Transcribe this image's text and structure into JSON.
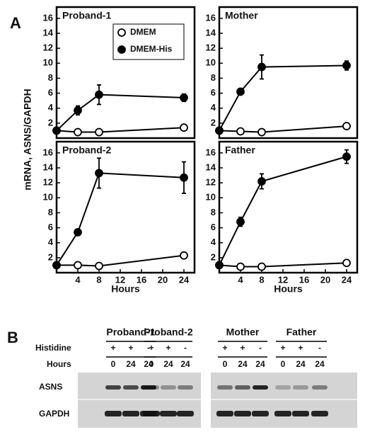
{
  "figure": {
    "panel_a_label": "A",
    "y_label": "mRNA, ASNS/GAPDH",
    "panel_b_label": "B"
  },
  "chart_data": [
    {
      "type": "line",
      "title": "Proband-1",
      "x": [
        0,
        4,
        8,
        24
      ],
      "xlim": [
        0,
        26
      ],
      "ylim": [
        0,
        17.5
      ],
      "yticks": [
        2,
        4,
        6,
        8,
        10,
        12,
        14,
        16
      ],
      "legend": "top-center",
      "series": [
        {
          "name": "DMEM",
          "color": "#000000",
          "marker_fill": "#ffffff",
          "values": [
            1.0,
            0.8,
            0.8,
            1.4
          ],
          "errors": [
            null,
            null,
            null,
            null
          ]
        },
        {
          "name": "DMEM-His",
          "color": "#000000",
          "marker_fill": "#000000",
          "values": [
            1.0,
            3.7,
            5.8,
            5.4
          ],
          "errors": [
            null,
            0.6,
            1.3,
            0.5
          ]
        }
      ]
    },
    {
      "type": "line",
      "title": "Mother",
      "x": [
        0,
        4,
        8,
        24
      ],
      "xlim": [
        0,
        26
      ],
      "ylim": [
        0,
        17.5
      ],
      "yticks": [
        2,
        4,
        6,
        8,
        10,
        12,
        14,
        16
      ],
      "series": [
        {
          "color": "#000000",
          "marker_fill": "#ffffff",
          "values": [
            1.0,
            0.9,
            0.8,
            1.6
          ],
          "errors": [
            null,
            null,
            null,
            null
          ]
        },
        {
          "color": "#000000",
          "marker_fill": "#000000",
          "values": [
            1.0,
            6.2,
            9.5,
            9.7
          ],
          "errors": [
            null,
            0.3,
            1.6,
            0.6
          ]
        }
      ]
    },
    {
      "type": "line",
      "title": "Proband-2",
      "x": [
        0,
        4,
        8,
        24
      ],
      "xlim": [
        0,
        26
      ],
      "ylim": [
        0,
        17.5
      ],
      "xticks": [
        4,
        8,
        12,
        16,
        20,
        24
      ],
      "x_label": "Hours",
      "yticks": [
        2,
        4,
        6,
        8,
        10,
        12,
        14,
        16
      ],
      "series": [
        {
          "color": "#000000",
          "marker_fill": "#ffffff",
          "values": [
            1.0,
            1.0,
            0.9,
            2.3
          ],
          "errors": [
            null,
            null,
            null,
            null
          ]
        },
        {
          "color": "#000000",
          "marker_fill": "#000000",
          "values": [
            1.0,
            5.4,
            13.3,
            12.7
          ],
          "errors": [
            null,
            null,
            2.0,
            2.1
          ]
        }
      ]
    },
    {
      "type": "line",
      "title": "Father",
      "x": [
        0,
        4,
        8,
        24
      ],
      "xlim": [
        0,
        26
      ],
      "ylim": [
        0,
        17.5
      ],
      "xticks": [
        4,
        8,
        12,
        16,
        20,
        24
      ],
      "x_label": "Hours",
      "yticks": [
        2,
        4,
        6,
        8,
        10,
        12,
        14,
        16
      ],
      "series": [
        {
          "color": "#000000",
          "marker_fill": "#ffffff",
          "values": [
            1.0,
            0.8,
            0.8,
            1.3
          ],
          "errors": [
            null,
            null,
            null,
            null
          ]
        },
        {
          "color": "#000000",
          "marker_fill": "#000000",
          "values": [
            1.0,
            6.8,
            12.2,
            15.5
          ],
          "errors": [
            null,
            0.6,
            1.0,
            0.9
          ]
        }
      ]
    }
  ],
  "blot": {
    "groups": [
      "Proband-1",
      "Proband-2",
      "Mother",
      "Father"
    ],
    "row_labels": [
      "Histidine",
      "Hours"
    ],
    "histidine": [
      "+",
      "+",
      "-",
      "+",
      "+",
      "-",
      "+",
      "+",
      "-",
      "+",
      "+",
      "-"
    ],
    "hours": [
      0,
      24,
      24,
      0,
      24,
      24,
      0,
      24,
      24,
      0,
      24,
      24
    ],
    "bands": [
      "ASNS",
      "GAPDH"
    ]
  }
}
